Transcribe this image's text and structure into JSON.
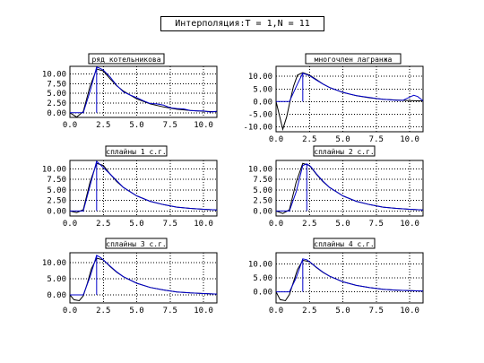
{
  "title": "Интерполяция:T = 1,N = 11",
  "colors": {
    "approx": "#0000cc",
    "original": "#000000",
    "grid": "#000000"
  },
  "chart_data": [
    {
      "type": "line",
      "title": "ряд котельникова",
      "xlim": [
        0,
        11
      ],
      "ylim": [
        -1.2,
        12
      ],
      "xticks": [
        "0.0",
        "2.5",
        "5.0",
        "7.5",
        "10.0"
      ],
      "xtick_values": [
        0,
        2.5,
        5,
        7.5,
        10
      ],
      "yticks": [
        "0.00",
        "2.50",
        "5.00",
        "7.50",
        "10.00"
      ],
      "ytick_values": [
        0,
        2.5,
        5,
        7.5,
        10
      ],
      "series": [
        {
          "role": "original",
          "x": [
            0,
            0.5,
            1,
            1.5,
            2,
            2.5,
            3,
            3.5,
            4,
            5,
            6,
            7,
            8,
            9,
            10,
            11
          ],
          "y": [
            0,
            -1.1,
            0.3,
            6.8,
            11.3,
            10.8,
            8.8,
            7.0,
            5.6,
            3.6,
            2.3,
            1.5,
            0.9,
            0.6,
            0.4,
            0.25
          ]
        },
        {
          "role": "approximation",
          "x": [
            0,
            1,
            1.5,
            2,
            2.25,
            2.5,
            3,
            3.5,
            4,
            4.5,
            5,
            5.5,
            6,
            6.5,
            7,
            7.5,
            8,
            8.5,
            9,
            9.5,
            10,
            10.5,
            11
          ],
          "y": [
            0,
            0,
            5.5,
            11.8,
            11.5,
            11.0,
            9.3,
            7.1,
            5.4,
            4.6,
            3.9,
            3.1,
            2.4,
            2.3,
            2.0,
            1.3,
            1.1,
            1.0,
            0.6,
            0.5,
            0.5,
            0.2,
            0.4
          ]
        }
      ]
    },
    {
      "type": "line",
      "title": "многочлен лагранжа",
      "xlim": [
        0,
        11
      ],
      "ylim": [
        -12,
        14
      ],
      "xticks": [
        "0.0",
        "2.5",
        "5.0",
        "7.5",
        "10.0"
      ],
      "xtick_values": [
        0,
        2.5,
        5,
        7.5,
        10
      ],
      "yticks": [
        "-10.00",
        "-5.00",
        "0.00",
        "5.00",
        "10.00"
      ],
      "ytick_values": [
        -10,
        -5,
        0,
        5,
        10
      ],
      "series": [
        {
          "role": "original",
          "x": [
            0,
            0.5,
            0.8,
            1,
            1.3,
            1.6,
            2,
            2.5,
            3,
            3.5,
            4,
            5,
            6,
            7,
            8,
            9,
            10,
            11
          ],
          "y": [
            0,
            -11,
            -6,
            -1,
            6,
            10.5,
            11.5,
            10.5,
            8.8,
            7.0,
            5.6,
            3.6,
            2.3,
            1.5,
            0.9,
            0.6,
            0.4,
            0.25
          ]
        },
        {
          "role": "approximation",
          "x": [
            0,
            1,
            1.6,
            2,
            2.5,
            3,
            3.5,
            4,
            4.5,
            5,
            5.5,
            6,
            6.5,
            7,
            7.5,
            8,
            8.5,
            9,
            9.5,
            10,
            10.3,
            10.6,
            11
          ],
          "y": [
            0,
            0,
            7.0,
            11.3,
            10.3,
            8.6,
            7.0,
            5.6,
            4.6,
            3.7,
            3.0,
            2.4,
            2.0,
            1.6,
            1.2,
            0.9,
            0.7,
            0.5,
            0.5,
            1.8,
            2.5,
            2.0,
            0.3
          ]
        }
      ]
    },
    {
      "type": "line",
      "title": "сплайны 1 с.г.",
      "xlim": [
        0,
        11
      ],
      "ylim": [
        -1.2,
        12
      ],
      "xticks": [
        "0.0",
        "2.5",
        "5.0",
        "7.5",
        "10.0"
      ],
      "xtick_values": [
        0,
        2.5,
        5,
        7.5,
        10
      ],
      "yticks": [
        "0.00",
        "2.50",
        "5.00",
        "7.50",
        "10.00"
      ],
      "ytick_values": [
        0,
        2.5,
        5,
        7.5,
        10
      ],
      "series": [
        {
          "role": "original",
          "x": [
            0,
            0.5,
            1,
            1.5,
            2,
            2.5,
            3,
            3.5,
            4,
            5,
            6,
            7,
            8,
            9,
            10,
            11
          ],
          "y": [
            0,
            -0.4,
            0.3,
            6.8,
            11.3,
            10.8,
            8.8,
            7.0,
            5.6,
            3.6,
            2.3,
            1.5,
            0.9,
            0.6,
            0.4,
            0.25
          ]
        },
        {
          "role": "approximation",
          "x": [
            0,
            1,
            2,
            3,
            4,
            5,
            6,
            7,
            8,
            9,
            10,
            11
          ],
          "y": [
            0,
            0,
            11.8,
            8.8,
            5.6,
            3.6,
            2.3,
            1.5,
            0.9,
            0.6,
            0.4,
            0.25
          ]
        }
      ]
    },
    {
      "type": "line",
      "title": "сплайны 2 с.г.",
      "xlim": [
        0,
        11
      ],
      "ylim": [
        -1.2,
        12
      ],
      "xticks": [
        "0.0",
        "2.5",
        "5.0",
        "7.5",
        "10.0"
      ],
      "xtick_values": [
        0,
        2.5,
        5,
        7.5,
        10
      ],
      "yticks": [
        "0.00",
        "2.50",
        "5.00",
        "7.50",
        "10.00"
      ],
      "ytick_values": [
        0,
        2.5,
        5,
        7.5,
        10
      ],
      "series": [
        {
          "role": "original",
          "x": [
            0,
            0.5,
            1,
            1.5,
            2,
            2.5,
            3,
            3.5,
            4,
            5,
            6,
            7,
            8,
            9,
            10,
            11
          ],
          "y": [
            0,
            -0.6,
            0.3,
            6.8,
            11.3,
            10.8,
            8.8,
            7.0,
            5.6,
            3.6,
            2.3,
            1.5,
            0.9,
            0.6,
            0.4,
            0.25
          ]
        },
        {
          "role": "approximation",
          "x": [
            0,
            1,
            1.5,
            2,
            2.3,
            2.6,
            3,
            3.5,
            4,
            5,
            6,
            7,
            8,
            9,
            10,
            11
          ],
          "y": [
            0,
            0,
            4.5,
            10.8,
            11.2,
            10.5,
            8.9,
            7.1,
            5.6,
            3.6,
            2.3,
            1.5,
            0.9,
            0.6,
            0.4,
            0.25
          ]
        }
      ]
    },
    {
      "type": "line",
      "title": "сплайны 3 с.г.",
      "xlim": [
        0,
        11
      ],
      "ylim": [
        -2.5,
        13
      ],
      "xticks": [
        "0.0",
        "2.5",
        "5.0",
        "7.5",
        "10.0"
      ],
      "xtick_values": [
        0,
        2.5,
        5,
        7.5,
        10
      ],
      "yticks": [
        "0.00",
        "5.00",
        "10.00"
      ],
      "ytick_values": [
        0,
        5,
        10
      ],
      "series": [
        {
          "role": "original",
          "x": [
            0,
            0.3,
            0.7,
            1,
            1.3,
            1.6,
            2,
            2.5,
            3,
            3.5,
            4,
            5,
            6,
            7,
            8,
            9,
            10,
            11
          ],
          "y": [
            0,
            -1.5,
            -1.8,
            -0.3,
            3.5,
            8.0,
            11.3,
            10.8,
            8.8,
            7.0,
            5.6,
            3.6,
            2.3,
            1.5,
            0.9,
            0.6,
            0.4,
            0.25
          ]
        },
        {
          "role": "approximation",
          "x": [
            0,
            1,
            1.5,
            2,
            2.3,
            2.6,
            3,
            3.5,
            4,
            5,
            6,
            7,
            8,
            9,
            10,
            11
          ],
          "y": [
            0,
            0,
            5.5,
            12.2,
            11.5,
            10.4,
            8.9,
            7.1,
            5.6,
            3.6,
            2.3,
            1.5,
            0.9,
            0.6,
            0.4,
            0.25
          ]
        }
      ]
    },
    {
      "type": "line",
      "title": "сплайны 4 с.г.",
      "xlim": [
        0,
        11
      ],
      "ylim": [
        -4,
        14
      ],
      "xticks": [
        "0.0",
        "2.5",
        "5.0",
        "7.5",
        "10.0"
      ],
      "xtick_values": [
        0,
        2.5,
        5,
        7.5,
        10
      ],
      "yticks": [
        "0.00",
        "5.00",
        "10.00"
      ],
      "ytick_values": [
        0,
        5,
        10
      ],
      "series": [
        {
          "role": "original",
          "x": [
            0,
            0.3,
            0.7,
            1,
            1.3,
            1.6,
            2,
            2.5,
            3,
            3.5,
            4,
            5,
            6,
            7,
            8,
            9,
            10,
            11
          ],
          "y": [
            0,
            -2.8,
            -3.2,
            -1.0,
            3.5,
            8.0,
            11.3,
            10.8,
            8.8,
            7.0,
            5.6,
            3.6,
            2.3,
            1.5,
            0.9,
            0.6,
            0.4,
            0.25
          ]
        },
        {
          "role": "approximation",
          "x": [
            0,
            1,
            1.5,
            2,
            2.3,
            2.6,
            3,
            3.5,
            4,
            5,
            6,
            7,
            8,
            9,
            10,
            11
          ],
          "y": [
            0,
            0,
            5.0,
            11.8,
            11.5,
            10.4,
            8.9,
            7.1,
            5.6,
            3.6,
            2.3,
            1.5,
            0.9,
            0.6,
            0.4,
            0.25
          ]
        }
      ]
    }
  ]
}
